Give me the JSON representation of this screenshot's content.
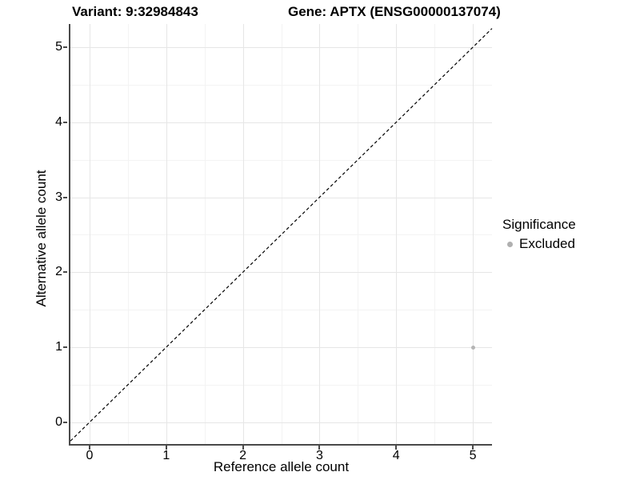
{
  "title": {
    "variant": "Variant: 9:32984843",
    "gene": "Gene: APTX (ENSG00000137074)"
  },
  "axes": {
    "x_label": "Reference allele count",
    "y_label": "Alternative allele count",
    "x_tick_labels": [
      "0",
      "1",
      "2",
      "3",
      "4",
      "5"
    ],
    "y_tick_labels": [
      "0",
      "1",
      "2",
      "3",
      "4",
      "5"
    ]
  },
  "legend": {
    "title": "Significance",
    "items": [
      {
        "label": "Excluded",
        "color": "#b0b0b0"
      }
    ]
  },
  "colors": {
    "grid_major": "#e6e6e6",
    "grid_minor": "#f3f3f3",
    "axis_line": "#4a4a4a",
    "point": "#b5b5b5",
    "abline": "#000000"
  },
  "chart_data": {
    "type": "scatter",
    "title": "Variant: 9:32984843    Gene: APTX (ENSG00000137074)",
    "xlabel": "Reference allele count",
    "ylabel": "Alternative allele count",
    "xlim": [
      -0.25,
      5.25
    ],
    "ylim": [
      -0.29,
      5.31
    ],
    "x_ticks": [
      0,
      1,
      2,
      3,
      4,
      5
    ],
    "y_ticks": [
      0,
      1,
      2,
      3,
      4,
      5
    ],
    "x_minor_ticks": [
      0.5,
      1.5,
      2.5,
      3.5,
      4.5
    ],
    "y_minor_ticks": [
      0.5,
      1.5,
      2.5,
      3.5,
      4.5
    ],
    "grid": true,
    "legend_position": "right",
    "series": [
      {
        "name": "Excluded",
        "color": "#b5b5b5",
        "points": [
          {
            "x": 5,
            "y": 1
          }
        ]
      }
    ],
    "abline": {
      "slope": 1,
      "intercept": 0,
      "linetype": "dashed",
      "color": "#000000"
    }
  }
}
